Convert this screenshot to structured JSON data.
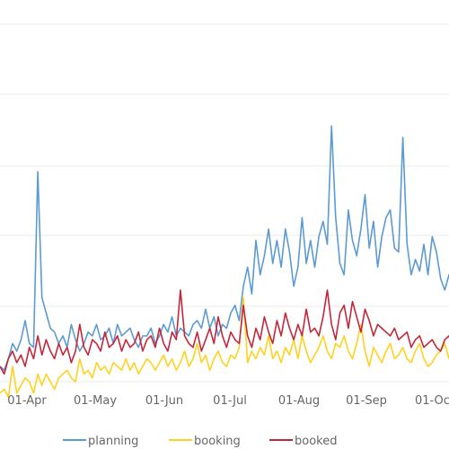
{
  "chart_data": {
    "type": "line",
    "title": "",
    "xlabel": "",
    "ylabel": "",
    "grid": true,
    "legend_position": "bottom-center",
    "x_ticks": [
      "01-Apr",
      "01-May",
      "01-Jun",
      "01-Jul",
      "01-Aug",
      "01-Sep",
      "01-Oct"
    ],
    "x_range": [
      "2021-03-16",
      "2021-10-16"
    ],
    "y_range": [
      0,
      100
    ],
    "sample_step_days": 2,
    "series": [
      {
        "name": "planning",
        "color": "#5b9bd1",
        "values": [
          4,
          3,
          6,
          10,
          8,
          11,
          16,
          10,
          9,
          55,
          22,
          18,
          14,
          13,
          10,
          12,
          9,
          15,
          11,
          8,
          10,
          13,
          12,
          15,
          11,
          12,
          14,
          10,
          15,
          12,
          13,
          14,
          11,
          9,
          12,
          12,
          14,
          10,
          12,
          15,
          13,
          17,
          12,
          14,
          13,
          12,
          15,
          16,
          14,
          19,
          14,
          17,
          12,
          15,
          14,
          18,
          20,
          16,
          25,
          30,
          23,
          37,
          28,
          33,
          40,
          31,
          37,
          30,
          40,
          34,
          25,
          30,
          43,
          31,
          37,
          30,
          38,
          42,
          36,
          67,
          43,
          31,
          28,
          45,
          37,
          33,
          40,
          49,
          35,
          42,
          30,
          38,
          43,
          45,
          35,
          34,
          64,
          36,
          28,
          32,
          29,
          36,
          28,
          38,
          34,
          27,
          24,
          28,
          25,
          25,
          34,
          26,
          40,
          27,
          45,
          37
        ]
      },
      {
        "name": "booking",
        "color": "#ffd21f",
        "values": [
          -3,
          -2,
          -4,
          4,
          -3,
          -1,
          1,
          0,
          -3,
          2,
          -1,
          2,
          0,
          -2,
          1,
          2,
          3,
          1,
          0,
          6,
          2,
          3,
          1,
          5,
          3,
          4,
          2,
          5,
          4,
          3,
          6,
          3,
          5,
          2,
          4,
          6,
          5,
          3,
          5,
          7,
          4,
          6,
          3,
          5,
          8,
          4,
          6,
          10,
          5,
          7,
          3,
          6,
          8,
          5,
          4,
          7,
          6,
          9,
          22,
          5,
          8,
          6,
          9,
          7,
          12,
          6,
          8,
          5,
          9,
          7,
          11,
          6,
          12,
          8,
          5,
          7,
          9,
          12,
          8,
          6,
          10,
          9,
          12,
          8,
          6,
          10,
          15,
          8,
          4,
          9,
          7,
          5,
          8,
          10,
          6,
          7,
          9,
          6,
          5,
          8,
          10,
          6,
          4,
          5,
          7,
          8,
          10,
          6,
          8,
          12,
          6,
          9,
          5,
          7,
          8,
          4
        ]
      },
      {
        "name": "booked",
        "color": "#c3273a",
        "values": [
          4,
          2,
          6,
          8,
          5,
          7,
          4,
          9,
          6,
          12,
          7,
          11,
          8,
          6,
          10,
          7,
          9,
          5,
          8,
          15,
          9,
          7,
          11,
          10,
          8,
          13,
          9,
          10,
          12,
          8,
          11,
          9,
          10,
          13,
          8,
          11,
          12,
          9,
          14,
          10,
          8,
          13,
          11,
          24,
          12,
          10,
          9,
          13,
          8,
          11,
          14,
          10,
          17,
          12,
          9,
          13,
          11,
          10,
          20,
          12,
          9,
          14,
          11,
          17,
          13,
          10,
          16,
          12,
          18,
          14,
          11,
          15,
          12,
          19,
          13,
          14,
          12,
          17,
          24,
          15,
          11,
          18,
          20,
          14,
          21,
          17,
          13,
          19,
          16,
          12,
          15,
          14,
          13,
          12,
          14,
          11,
          12,
          13,
          9,
          11,
          12,
          9,
          10,
          11,
          9,
          8,
          11,
          12,
          9,
          10,
          13,
          9,
          7,
          10,
          8,
          7
        ]
      }
    ]
  }
}
